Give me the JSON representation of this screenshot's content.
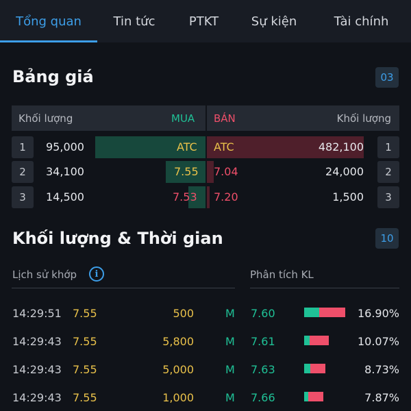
{
  "tabs": [
    {
      "label": "Tổng quan",
      "active": true
    },
    {
      "label": "Tin tức",
      "active": false
    },
    {
      "label": "PTKT",
      "active": false
    },
    {
      "label": "Sự kiện",
      "active": false
    },
    {
      "label": "Tài chính",
      "active": false
    }
  ],
  "orderbook": {
    "title": "Bảng giá",
    "badge": "03",
    "headers": {
      "vol_left": "Khối lượng",
      "buy": "MUA",
      "sell": "BÁN",
      "vol_right": "Khối lượng"
    },
    "rows": [
      {
        "idx": "1",
        "buy_vol": "95,000",
        "buy_price": "ATC",
        "sell_price": "ATC",
        "sell_vol": "482,100",
        "idx_right": "1"
      },
      {
        "idx": "2",
        "buy_vol": "34,100",
        "buy_price": "7.55",
        "sell_price": "7.04",
        "sell_vol": "24,000",
        "idx_right": "2"
      },
      {
        "idx": "3",
        "buy_vol": "14,500",
        "buy_price": "7.53",
        "sell_price": "7.20",
        "sell_vol": "1,500",
        "idx_right": "3"
      }
    ]
  },
  "trades": {
    "title": "Khối lượng & Thời gian",
    "badge": "10",
    "history_label": "Lịch sử khớp",
    "analysis_label": "Phân tích KL",
    "rows": [
      {
        "time": "14:29:51",
        "price": "7.55",
        "volume": "500",
        "side": "M",
        "kl_price": "7.60",
        "kl_pct": "16.90%"
      },
      {
        "time": "14:29:43",
        "price": "7.55",
        "volume": "5,800",
        "side": "M",
        "kl_price": "7.61",
        "kl_pct": "10.07%"
      },
      {
        "time": "14:29:43",
        "price": "7.55",
        "volume": "5,000",
        "side": "M",
        "kl_price": "7.63",
        "kl_pct": "8.73%"
      },
      {
        "time": "14:29:43",
        "price": "7.55",
        "volume": "1,000",
        "side": "M",
        "kl_price": "7.66",
        "kl_pct": "7.87%"
      }
    ]
  },
  "colors": {
    "accent": "#3d9ee8",
    "up": "#1fc196",
    "down": "#ef4f6a",
    "ref": "#e9c14a"
  }
}
